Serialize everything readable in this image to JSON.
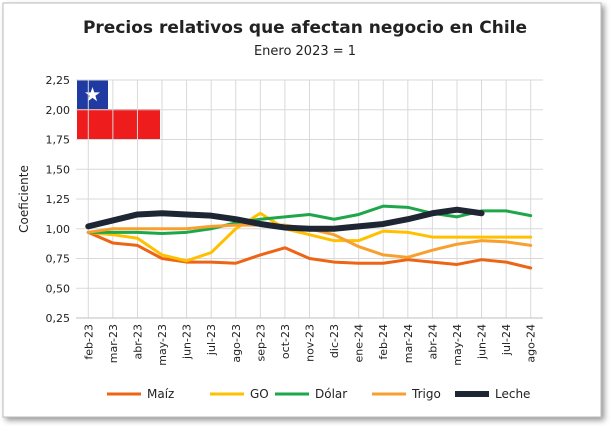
{
  "chart_data": {
    "type": "line",
    "title": "Precios relativos que afectan negocio en Chile",
    "subtitle": "Enero 2023 = 1",
    "y_label": "Coeficiente",
    "categories": [
      "feb-23",
      "mar-23",
      "abr-23",
      "may-23",
      "jun-23",
      "jul-23",
      "ago-23",
      "sep-23",
      "oct-23",
      "nov-23",
      "dic-23",
      "ene-24",
      "feb-24",
      "mar-24",
      "abr-24",
      "may-24",
      "jun-24",
      "jul-24",
      "ago-24"
    ],
    "ylim": [
      0.25,
      2.25
    ],
    "yticks": [
      {
        "value": 0.25,
        "label": "0,25"
      },
      {
        "value": 0.5,
        "label": "0,50"
      },
      {
        "value": 0.75,
        "label": "0,75"
      },
      {
        "value": 1.0,
        "label": "1,00"
      },
      {
        "value": 1.25,
        "label": "1,25"
      },
      {
        "value": 1.5,
        "label": "1,50"
      },
      {
        "value": 1.75,
        "label": "1,75"
      },
      {
        "value": 2.0,
        "label": "2,00"
      },
      {
        "value": 2.25,
        "label": "2,25"
      }
    ],
    "grid": true,
    "legend": "bottom",
    "series": [
      {
        "name": "Maíz",
        "color": "#ec6414",
        "width": 3,
        "values": [
          0.97,
          0.88,
          0.86,
          0.75,
          0.72,
          0.72,
          0.71,
          0.78,
          0.84,
          0.75,
          0.72,
          0.71,
          0.71,
          0.74,
          0.72,
          0.7,
          0.74,
          0.72,
          0.67
        ]
      },
      {
        "name": "GO",
        "color": "#ffc000",
        "width": 3,
        "values": [
          0.97,
          0.95,
          0.92,
          0.78,
          0.73,
          0.8,
          1.0,
          1.13,
          1.0,
          0.95,
          0.9,
          0.9,
          0.98,
          0.97,
          0.93,
          0.93,
          0.93,
          0.93,
          0.93
        ]
      },
      {
        "name": "Dólar",
        "color": "#1ea64a",
        "width": 3,
        "values": [
          0.97,
          0.97,
          0.97,
          0.96,
          0.97,
          1.0,
          1.05,
          1.08,
          1.1,
          1.12,
          1.08,
          1.12,
          1.19,
          1.18,
          1.13,
          1.1,
          1.15,
          1.15,
          1.11
        ]
      },
      {
        "name": "Trigo",
        "color": "#f7a030",
        "width": 3,
        "values": [
          0.97,
          1.0,
          1.0,
          1.0,
          1.0,
          1.02,
          1.03,
          1.03,
          1.03,
          1.0,
          0.95,
          0.85,
          0.78,
          0.76,
          0.82,
          0.87,
          0.9,
          0.89,
          0.86
        ]
      },
      {
        "name": "Leche",
        "color": "#1e2533",
        "width": 6,
        "values": [
          1.02,
          1.07,
          1.12,
          1.13,
          1.12,
          1.11,
          1.08,
          1.04,
          1.01,
          1.0,
          1.0,
          1.02,
          1.04,
          1.08,
          1.13,
          1.16,
          1.13,
          null,
          null
        ]
      }
    ]
  }
}
